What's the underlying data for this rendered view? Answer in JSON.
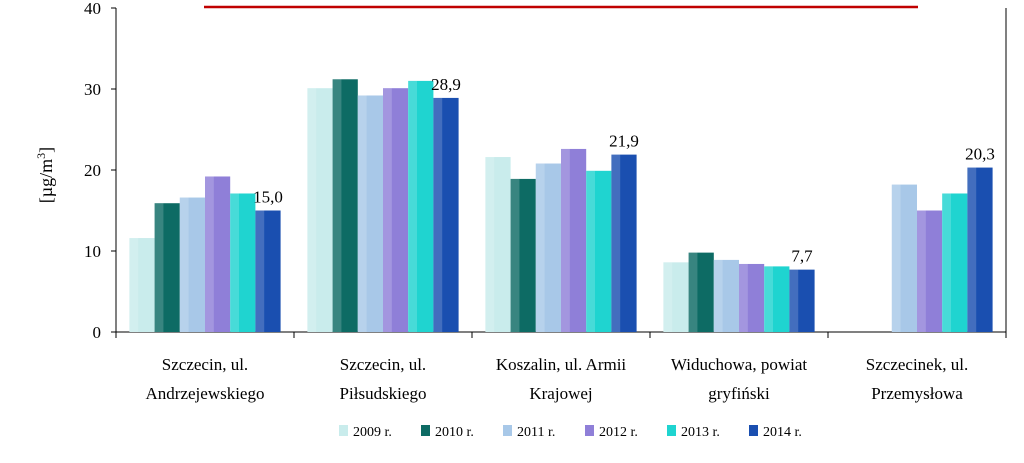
{
  "chart_data": {
    "type": "bar",
    "categories": [
      [
        "Szczecin, ul.",
        "Andrzejewskiego"
      ],
      [
        "Szczecin, ul.",
        "Piłsudskiego"
      ],
      [
        "Koszalin, ul. Armii",
        "Krajowej"
      ],
      [
        "Widuchowa, powiat",
        "gryfiński"
      ],
      [
        "Szczecinek, ul.",
        "Przemysłowa"
      ]
    ],
    "series": [
      {
        "name": "2009 r.",
        "values": [
          11.6,
          30.1,
          21.6,
          8.6,
          null
        ],
        "color": "#c9ecec"
      },
      {
        "name": "2010 r.",
        "values": [
          15.9,
          31.2,
          18.9,
          9.8,
          null
        ],
        "color": "#0d6b64"
      },
      {
        "name": "2011 r.",
        "values": [
          16.6,
          29.2,
          20.8,
          8.9,
          18.2
        ],
        "color": "#a8c8e8"
      },
      {
        "name": "2012 r.",
        "values": [
          19.2,
          30.1,
          22.6,
          8.4,
          15.0
        ],
        "color": "#8f7fd8"
      },
      {
        "name": "2013 r.",
        "values": [
          17.1,
          31.0,
          19.9,
          8.1,
          17.1
        ],
        "color": "#1fd4d0"
      },
      {
        "name": "2014 r.",
        "values": [
          15.0,
          28.9,
          21.9,
          7.7,
          20.3
        ],
        "color": "#1a4fb0"
      }
    ],
    "data_labels": [
      "15,0",
      "28,9",
      "21,9",
      "7,7",
      "20,3"
    ],
    "ylabel": "[µg/m3]",
    "ylim": [
      0,
      40
    ],
    "yticks": [
      "0",
      "10",
      "20",
      "30",
      "40"
    ],
    "reference_line": {
      "value": 40,
      "color": "#c00000"
    },
    "grid": false,
    "legend_position": "bottom"
  }
}
